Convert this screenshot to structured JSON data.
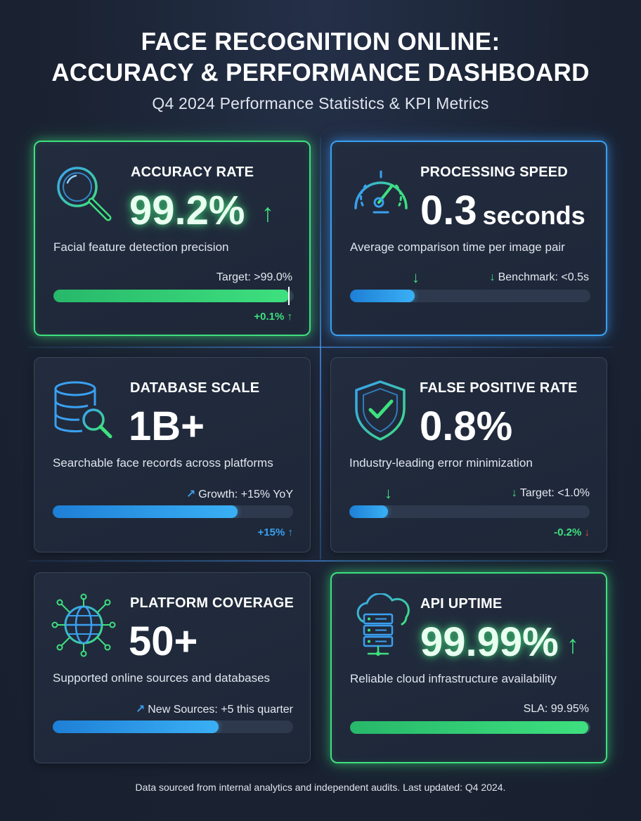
{
  "header": {
    "title_line1": "FACE RECOGNITION ONLINE:",
    "title_line2": "ACCURACY & PERFORMANCE DASHBOARD",
    "subtitle": "Q4 2024 Performance Statistics & KPI Metrics"
  },
  "cards": [
    {
      "title": "ACCURACY RATE",
      "value": "99.2%",
      "description": "Facial feature detection precision",
      "meta": "Target: >99.0%",
      "progress_fraction": 0.98,
      "delta": "+0.1% ↑",
      "icon": "magnifier-icon",
      "accent": "#3ee07f"
    },
    {
      "title": "PROCESSING SPEED",
      "value": "0.3",
      "unit": "seconds",
      "description": "Average comparison time per image pair",
      "meta": "Benchmark: <0.5s",
      "progress_fraction": 0.27,
      "icon": "speedometer-icon",
      "accent": "#3aa0f0"
    },
    {
      "title": "DATABASE SCALE",
      "value": "1B+",
      "description": "Searchable face records across platforms",
      "meta": "Growth: +15% YoY",
      "progress_fraction": 0.77,
      "delta": "+15% ↑",
      "icon": "database-search-icon",
      "accent": "#3aa0f0"
    },
    {
      "title": "FALSE POSITIVE RATE",
      "value": "0.8%",
      "description": "Industry-leading error minimization",
      "meta": "Target: <1.0%",
      "progress_fraction": 0.16,
      "delta_text": "-0.2%",
      "delta_arrow": "↓",
      "icon": "shield-check-icon",
      "accent": "#3ee07f"
    },
    {
      "title": "PLATFORM COVERAGE",
      "value": "50+",
      "description": "Supported online sources and databases",
      "meta": "New Sources: +5 this quarter",
      "progress_fraction": 0.69,
      "icon": "globe-network-icon",
      "accent": "#3aa0f0"
    },
    {
      "title": "API UPTIME",
      "value": "99.99%",
      "description": "Reliable cloud infrastructure availability",
      "meta": "SLA: 99.95%",
      "progress_fraction": 0.99,
      "icon": "cloud-server-icon",
      "accent": "#3ee07f"
    }
  ],
  "footer": "Data sourced from internal analytics and independent audits. Last updated: Q4 2024."
}
